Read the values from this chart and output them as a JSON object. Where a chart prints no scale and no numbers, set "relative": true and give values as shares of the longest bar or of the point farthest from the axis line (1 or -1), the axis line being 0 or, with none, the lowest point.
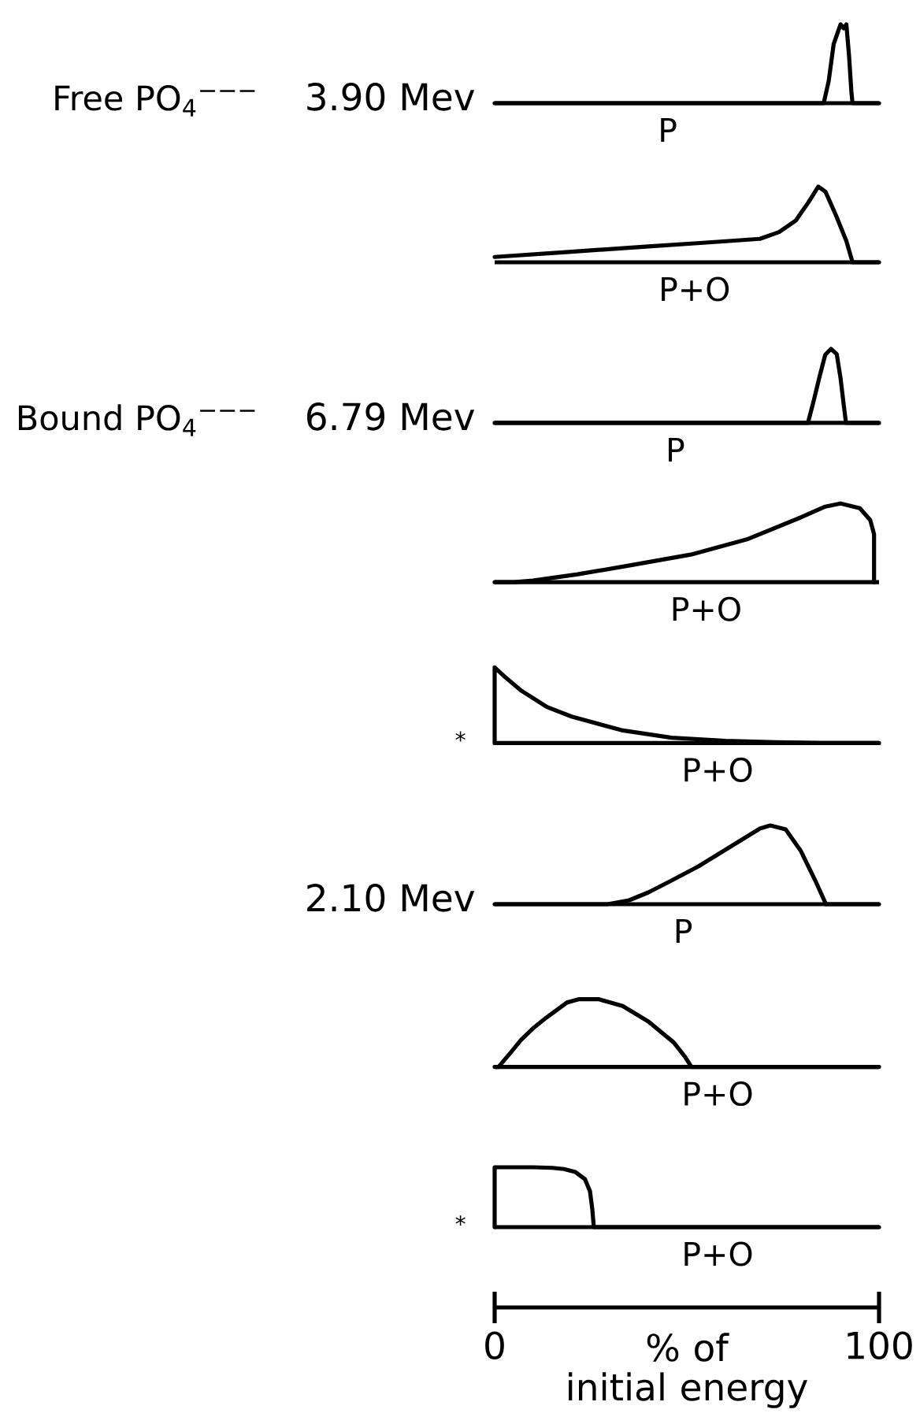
{
  "chart_data": [
    {
      "type": "line",
      "ylabel": "Free PO$_{4}$$^{−−−}$",
      "subtitle": "3.90 Mev",
      "relative": true,
      "xlim": [
        0,
        100
      ],
      "tick_labels": false,
      "series": [
        {
          "name": "P",
          "color": "#000000",
          "x": [
            0,
            85.6,
            86.9,
            88.2,
            90,
            90.8,
            91.5,
            92.2,
            92.8,
            93.1,
            100
          ],
          "values": [
            0,
            0,
            0.28,
            0.75,
            1,
            0.95,
            1,
            0.6,
            0.15,
            0,
            0
          ]
        }
      ]
    },
    {
      "type": "line",
      "relative": true,
      "xlim": [
        0,
        100
      ],
      "tick_labels": false,
      "series": [
        {
          "name": "P+O",
          "color": "#000000",
          "x": [
            0,
            20,
            40,
            55,
            69,
            74,
            78.3,
            81.6,
            84.2,
            86.1,
            88.8,
            91.5,
            93.1,
            100
          ],
          "values": [
            0.07,
            0.14,
            0.21,
            0.26,
            0.31,
            0.4,
            0.55,
            0.79,
            1,
            0.93,
            0.62,
            0.28,
            0,
            0
          ]
        }
      ]
    },
    {
      "type": "line",
      "ylabel": "Bound PO$_{4}$$^{−−−}$",
      "subtitle": "6.79 Mev",
      "relative": true,
      "xlim": [
        0,
        100
      ],
      "tick_labels": false,
      "series": [
        {
          "name": "P",
          "color": "#000000",
          "x": [
            0,
            81.5,
            83,
            84.5,
            86,
            87.5,
            89,
            90,
            90.8,
            91.4,
            100
          ],
          "values": [
            0,
            0,
            0.3,
            0.62,
            0.92,
            1,
            0.93,
            0.6,
            0.25,
            0,
            0
          ]
        }
      ]
    },
    {
      "type": "line",
      "relative": true,
      "xlim": [
        0,
        100
      ],
      "tick_labels": false,
      "series": [
        {
          "name": "P+O",
          "color": "#000000",
          "x": [
            0,
            5,
            10,
            21.6,
            36,
            51,
            66,
            80,
            86,
            90,
            95,
            97.7,
            98.7,
            98.7
          ],
          "values": [
            0,
            0,
            0.02,
            0.1,
            0.22,
            0.35,
            0.55,
            0.83,
            0.96,
            1,
            0.94,
            0.79,
            0.61,
            0
          ]
        }
      ]
    },
    {
      "type": "line",
      "relative": true,
      "xlim": [
        0,
        100
      ],
      "tick_labels": false,
      "annotations": [
        "*"
      ],
      "series": [
        {
          "name": "P+O",
          "color": "#000000",
          "x": [
            0,
            0,
            3,
            7,
            13.5,
            20,
            33,
            46,
            60,
            73,
            85,
            100
          ],
          "values": [
            0,
            1,
            0.86,
            0.69,
            0.48,
            0.35,
            0.17,
            0.07,
            0.03,
            0.01,
            0,
            0
          ]
        }
      ]
    },
    {
      "type": "line",
      "subtitle": "2.10 Mev",
      "relative": true,
      "xlim": [
        0,
        100
      ],
      "tick_labels": false,
      "series": [
        {
          "name": "P",
          "color": "#000000",
          "x": [
            0,
            29.4,
            35,
            40,
            46,
            53,
            59,
            64,
            69,
            71.7,
            75.7,
            79.6,
            83.6,
            86.2,
            100
          ],
          "values": [
            0,
            0,
            0.05,
            0.15,
            0.3,
            0.48,
            0.66,
            0.81,
            0.96,
            1,
            0.95,
            0.68,
            0.28,
            0,
            0
          ]
        }
      ]
    },
    {
      "type": "line",
      "relative": true,
      "xlim": [
        0,
        100
      ],
      "tick_labels": false,
      "series": [
        {
          "name": "P+O",
          "color": "#000000",
          "x": [
            0,
            1,
            4,
            6.9,
            10,
            13.5,
            18.8,
            22,
            27,
            33.3,
            40,
            46.6,
            49.5,
            51.2,
            100
          ],
          "values": [
            0,
            0,
            0.2,
            0.4,
            0.57,
            0.73,
            0.95,
            1,
            1,
            0.9,
            0.67,
            0.36,
            0.15,
            0,
            0
          ]
        }
      ]
    },
    {
      "type": "line",
      "relative": true,
      "xlim": [
        0,
        100
      ],
      "xticks": [
        0,
        100
      ],
      "xlabel": "% of initial energy",
      "tick_labels": "x",
      "annotations": [
        "*"
      ],
      "series": [
        {
          "name": "P+O",
          "color": "#000000",
          "x": [
            0,
            0,
            10,
            15,
            18,
            21,
            23.5,
            24.8,
            25.4,
            25.8,
            100
          ],
          "values": [
            0,
            1,
            1,
            0.99,
            0.97,
            0.92,
            0.8,
            0.6,
            0.3,
            0,
            0
          ]
        }
      ]
    }
  ]
}
